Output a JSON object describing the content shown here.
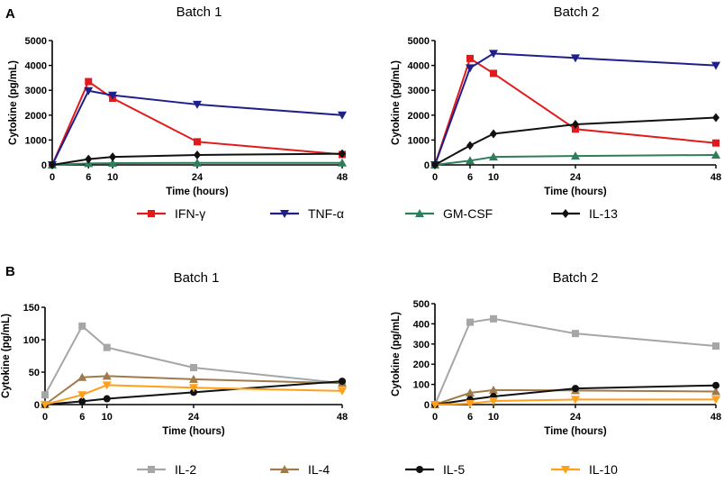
{
  "panels": [
    {
      "label": "A",
      "legend": [
        {
          "name": "IFN-γ",
          "marker": "square",
          "color": "#e31a1c"
        },
        {
          "name": "TNF-α",
          "marker": "triangle-down",
          "color": "#1f1f8c"
        },
        {
          "name": "GM-CSF",
          "marker": "triangle-up",
          "color": "#2e7d5b"
        },
        {
          "name": "IL-13",
          "marker": "diamond",
          "color": "#111111"
        }
      ]
    },
    {
      "label": "B",
      "legend": [
        {
          "name": "IL-2",
          "marker": "square",
          "color": "#a6a6a6"
        },
        {
          "name": "IL-4",
          "marker": "triangle-up",
          "color": "#a07a4a"
        },
        {
          "name": "IL-5",
          "marker": "circle",
          "color": "#111111"
        },
        {
          "name": "IL-10",
          "marker": "triangle-down",
          "color": "#ff9f1a"
        }
      ]
    }
  ],
  "chart_data": [
    {
      "type": "line",
      "panel": "A",
      "title": "Batch 1",
      "xlabel": "Time (hours)",
      "ylabel": "Cytokine (pg/mL)",
      "x": [
        0,
        6,
        10,
        24,
        48
      ],
      "xticks": [
        "0",
        "6",
        "10",
        "24",
        "48"
      ],
      "ylim": [
        0,
        5000
      ],
      "yticks": [
        "0",
        "1000",
        "2000",
        "3000",
        "4000",
        "5000"
      ],
      "series": [
        {
          "name": "IFN-γ",
          "marker": "square",
          "color": "#e31a1c",
          "values": [
            0,
            3350,
            2680,
            930,
            420
          ]
        },
        {
          "name": "TNF-α",
          "marker": "triangle-down",
          "color": "#1f1f8c",
          "values": [
            0,
            2980,
            2800,
            2430,
            2000
          ]
        },
        {
          "name": "GM-CSF",
          "marker": "triangle-up",
          "color": "#2e7d5b",
          "values": [
            0,
            60,
            70,
            80,
            80
          ]
        },
        {
          "name": "IL-13",
          "marker": "diamond",
          "color": "#111111",
          "values": [
            0,
            230,
            320,
            400,
            450
          ]
        }
      ]
    },
    {
      "type": "line",
      "panel": "A",
      "title": "Batch 2",
      "xlabel": "Time (hours)",
      "ylabel": "Cytokine (pg/mL)",
      "x": [
        0,
        6,
        10,
        24,
        48
      ],
      "xticks": [
        "0",
        "6",
        "10",
        "24",
        "48"
      ],
      "ylim": [
        0,
        5000
      ],
      "yticks": [
        "0",
        "1000",
        "2000",
        "3000",
        "4000",
        "5000"
      ],
      "series": [
        {
          "name": "IFN-γ",
          "marker": "square",
          "color": "#e31a1c",
          "values": [
            0,
            4280,
            3680,
            1440,
            880
          ]
        },
        {
          "name": "TNF-α",
          "marker": "triangle-down",
          "color": "#1f1f8c",
          "values": [
            0,
            3900,
            4480,
            4300,
            4000
          ]
        },
        {
          "name": "GM-CSF",
          "marker": "triangle-up",
          "color": "#2e7d5b",
          "values": [
            0,
            170,
            320,
            360,
            400
          ]
        },
        {
          "name": "IL-13",
          "marker": "diamond",
          "color": "#111111",
          "values": [
            0,
            780,
            1250,
            1630,
            1900
          ]
        }
      ]
    },
    {
      "type": "line",
      "panel": "B",
      "title": "Batch 1",
      "xlabel": "Time (hours)",
      "ylabel": "Cytokine (pg/mL)",
      "x": [
        0,
        6,
        10,
        24,
        48
      ],
      "xticks": [
        "0",
        "6",
        "10",
        "24",
        "48"
      ],
      "ylim": [
        0,
        150
      ],
      "yticks": [
        "0",
        "50",
        "100",
        "150"
      ],
      "series": [
        {
          "name": "IL-2",
          "marker": "square",
          "color": "#a6a6a6",
          "values": [
            15,
            121,
            88,
            57,
            33
          ]
        },
        {
          "name": "IL-4",
          "marker": "triangle-up",
          "color": "#a07a4a",
          "values": [
            0,
            42,
            44,
            39,
            33
          ]
        },
        {
          "name": "IL-5",
          "marker": "circle",
          "color": "#111111",
          "values": [
            0,
            5,
            9,
            19,
            36
          ]
        },
        {
          "name": "IL-10",
          "marker": "triangle-down",
          "color": "#ff9f1a",
          "values": [
            0,
            15,
            30,
            26,
            21
          ]
        }
      ]
    },
    {
      "type": "line",
      "panel": "B",
      "title": "Batch 2",
      "xlabel": "Time (hours)",
      "ylabel": "Cytokine (pg/mL)",
      "x": [
        0,
        6,
        10,
        24,
        48
      ],
      "xticks": [
        "0",
        "6",
        "10",
        "24",
        "48"
      ],
      "ylim": [
        0,
        500
      ],
      "yticks": [
        "0",
        "100",
        "200",
        "300",
        "400",
        "500"
      ],
      "series": [
        {
          "name": "IL-2",
          "marker": "square",
          "color": "#a6a6a6",
          "values": [
            0,
            408,
            425,
            352,
            290
          ]
        },
        {
          "name": "IL-4",
          "marker": "triangle-up",
          "color": "#a07a4a",
          "values": [
            0,
            58,
            72,
            70,
            65
          ]
        },
        {
          "name": "IL-5",
          "marker": "circle",
          "color": "#111111",
          "values": [
            0,
            25,
            40,
            80,
            95
          ]
        },
        {
          "name": "IL-10",
          "marker": "triangle-down",
          "color": "#ff9f1a",
          "values": [
            0,
            5,
            18,
            25,
            25
          ]
        }
      ]
    }
  ]
}
